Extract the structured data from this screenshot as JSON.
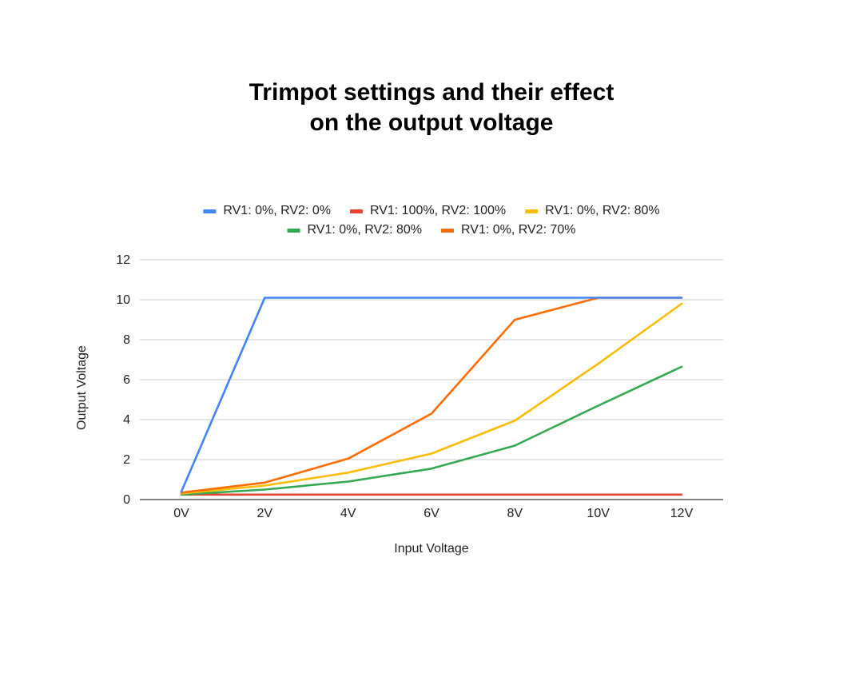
{
  "chart_data": {
    "type": "line",
    "title_lines": [
      "Trimpot settings and their effect",
      "on the output voltage"
    ],
    "xlabel": "Input Voltage",
    "ylabel": "Output Voltage",
    "categories": [
      "0V",
      "2V",
      "4V",
      "6V",
      "8V",
      "10V",
      "12V"
    ],
    "ylim": [
      0,
      12
    ],
    "yticks": [
      "0",
      "2",
      "4",
      "6",
      "8",
      "10",
      "12"
    ],
    "grid": true,
    "legend_position": "top",
    "series": [
      {
        "name": "RV1: 0%, RV2: 0%",
        "color": "#4285f4",
        "values": [
          0.4,
          10.1,
          10.1,
          10.1,
          10.1,
          10.1,
          10.1
        ]
      },
      {
        "name": "RV1: 100%, RV2: 100%",
        "color": "#ea4335",
        "values": [
          0.25,
          0.25,
          0.25,
          0.25,
          0.25,
          0.25,
          0.25
        ]
      },
      {
        "name": "RV1: 0%, RV2: 80%",
        "color": "#fbbc04",
        "values": [
          0.3,
          0.7,
          1.35,
          2.3,
          3.95,
          6.8,
          9.8
        ]
      },
      {
        "name": "RV1: 0%, RV2: 80%",
        "color": "#34a853",
        "values": [
          0.25,
          0.5,
          0.9,
          1.55,
          2.7,
          4.7,
          6.65
        ]
      },
      {
        "name": "RV1: 0%, RV2: 70%",
        "color": "#ff6d01",
        "values": [
          0.35,
          0.85,
          2.05,
          4.3,
          9.0,
          10.1,
          10.1
        ]
      }
    ]
  }
}
